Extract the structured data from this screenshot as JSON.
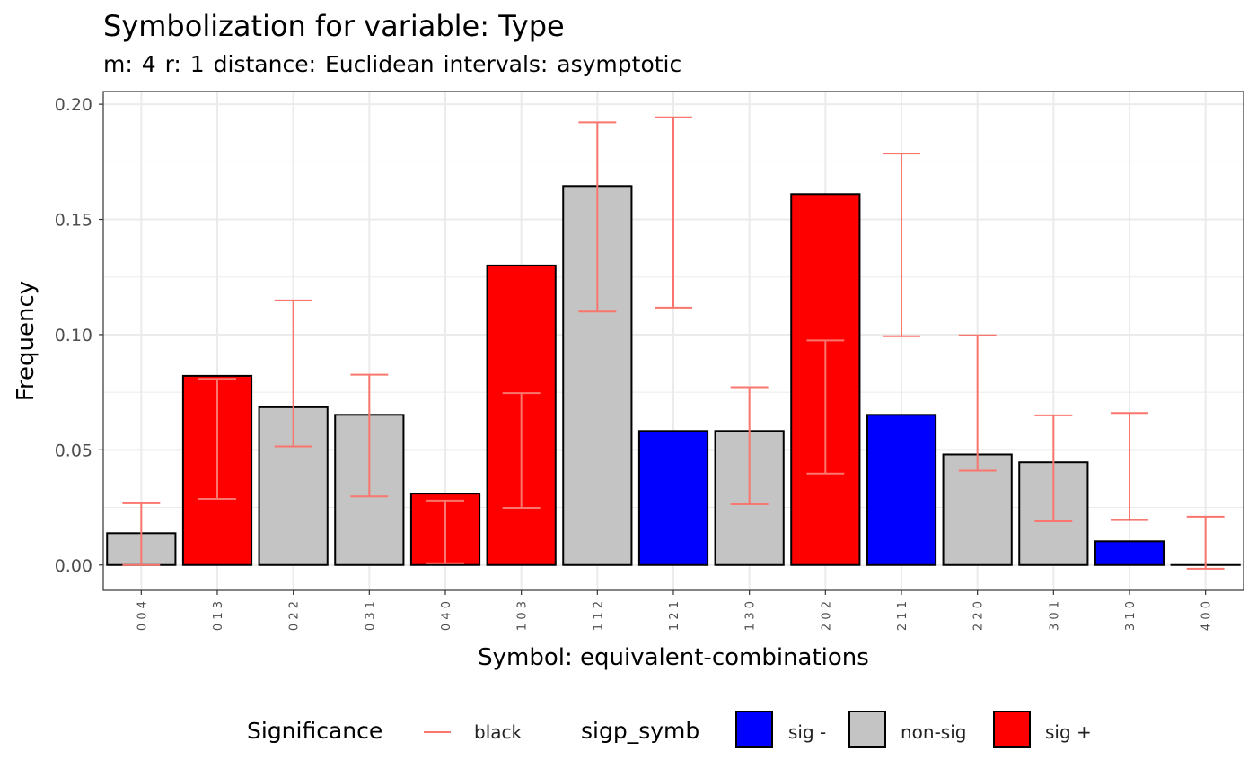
{
  "title": "Symbolization for variable: Type",
  "subtitle": "m: 4  r:  1  distance:  Euclidean  intervals:  asymptotic",
  "colors": {
    "sig_minus": "#0000FF",
    "non_sig": "#C4C4C4",
    "sig_plus": "#FF0000",
    "errorbar": "#F8766D",
    "grid": "#EBEBEB",
    "panel_border": "#333333"
  },
  "legend": {
    "significance_title": "Significance",
    "significance_item": "black",
    "fill_title": "sigp_symb",
    "fill_items": [
      {
        "label": "sig -",
        "color": "#0000FF"
      },
      {
        "label": "non-sig",
        "color": "#C4C4C4"
      },
      {
        "label": "sig +",
        "color": "#FF0000"
      }
    ]
  },
  "chart_data": {
    "type": "bar",
    "xlabel": "Symbol: equivalent-combinations",
    "ylabel": "Frequency",
    "ylim": [
      -0.011,
      0.2055
    ],
    "yticks": [
      "0.00",
      "0.05",
      "0.10",
      "0.15",
      "0.20"
    ],
    "ytick_values": [
      0.0,
      0.05,
      0.1,
      0.15,
      0.2
    ],
    "grid": true,
    "legend_position": "bottom",
    "categories": [
      "0 0 4",
      "0 1 3",
      "0 2 2",
      "0 3 1",
      "0 4 0",
      "1 0 3",
      "1 1 2",
      "1 2 1",
      "1 3 0",
      "2 0 2",
      "2 1 1",
      "2 2 0",
      "3 0 1",
      "3 1 0",
      "4 0 0"
    ],
    "values": [
      0.0138,
      0.0821,
      0.0685,
      0.0652,
      0.031,
      0.13,
      0.1645,
      0.0582,
      0.0582,
      0.161,
      0.0652,
      0.048,
      0.0446,
      0.0103,
      0.0
    ],
    "significance": [
      "non-sig",
      "sig +",
      "non-sig",
      "non-sig",
      "sig +",
      "sig +",
      "non-sig",
      "sig -",
      "non-sig",
      "sig +",
      "sig -",
      "non-sig",
      "non-sig",
      "sig -",
      "non-sig"
    ],
    "error_lower": [
      0.0,
      0.0287,
      0.0515,
      0.0298,
      0.0008,
      0.0248,
      0.11,
      0.1117,
      0.0264,
      0.0397,
      0.0993,
      0.041,
      0.019,
      0.0195,
      -0.0016
    ],
    "error_upper": [
      0.0268,
      0.0808,
      0.1148,
      0.0826,
      0.028,
      0.0746,
      0.1921,
      0.1943,
      0.0772,
      0.0975,
      0.1786,
      0.0997,
      0.065,
      0.066,
      0.021
    ]
  }
}
